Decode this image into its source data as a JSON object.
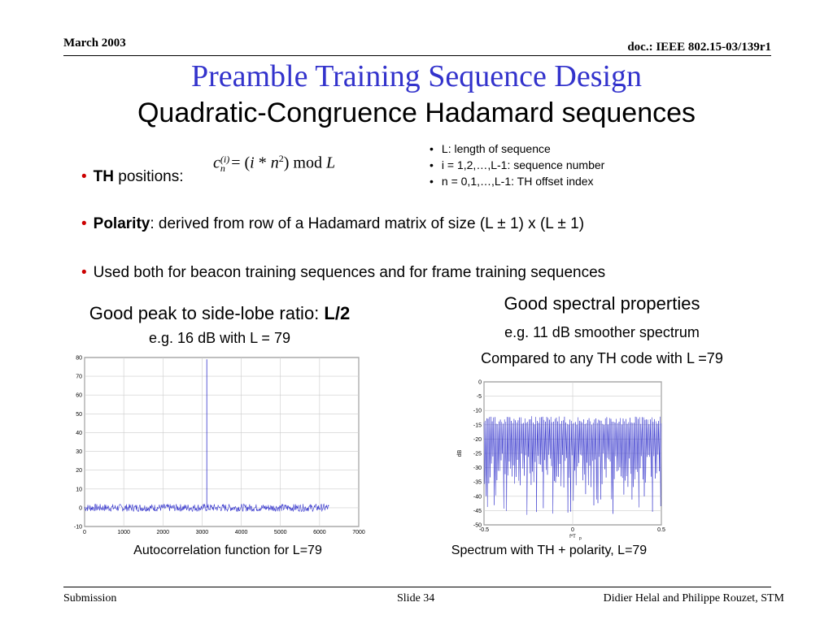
{
  "header": {
    "date": "March 2003",
    "doc": "doc.: IEEE 802.15-03/139r1"
  },
  "title": "Preamble Training Sequence Design",
  "subtitle": "Quadratic-Congruence Hadamard sequences",
  "bullets": {
    "th_bold": "TH",
    "th_rest": " positions:",
    "polarity_bold": "Polarity",
    "polarity_rest": ": derived from row of a Hadamard matrix of size (L ± 1) x (L ± 1)",
    "used": "Used both for beacon training sequences and for frame training sequences"
  },
  "formula": {
    "c": "c",
    "sup": "(i)",
    "sub": "n",
    "eq": "= (",
    "i": "i",
    "star": " * ",
    "n": "n",
    "exp": "2",
    "close": ")",
    "mod": " mod ",
    "L": "L"
  },
  "side_notes": [
    "L: length of sequence",
    "i = 1,2,…,L-1: sequence number",
    "n = 0,1,…,L-1: TH offset index"
  ],
  "left_figure": {
    "heading": "Good peak to side-lobe ratio: ",
    "heading_bold": "L/2",
    "sub": "e.g. 16 dB with L = 79",
    "caption": "Autocorrelation function for L=79"
  },
  "right_figure": {
    "heading": "Good spectral properties",
    "sub1": "e.g. 11 dB smoother spectrum",
    "sub2": "Compared to any TH code with L =79",
    "caption": "Spectrum with TH + polarity, L=79"
  },
  "chart_data": [
    {
      "type": "line",
      "title": "",
      "xlabel": "",
      "ylabel": "",
      "xlim": [
        0,
        7000
      ],
      "ylim": [
        -10,
        80
      ],
      "x_ticks": [
        "0",
        "1000",
        "2000",
        "3000",
        "4000",
        "5000",
        "6000",
        "7000"
      ],
      "y_ticks": [
        "-10",
        "0",
        "10",
        "20",
        "30",
        "40",
        "50",
        "60",
        "70",
        "80"
      ],
      "series": [
        {
          "x_range": [
            0,
            6240
          ],
          "baseline": 0,
          "noise_amplitude": 2,
          "peak_x": 3120,
          "peak_y": 79
        }
      ],
      "grid": true,
      "color": "#3333cc"
    },
    {
      "type": "line",
      "title": "",
      "xlabel": "f*T",
      "xlabel_sub": "p",
      "ylabel": "dB",
      "xlim": [
        -0.5,
        0.5
      ],
      "ylim": [
        -50,
        0
      ],
      "x_ticks": [
        "-0.5",
        "0",
        "0.5"
      ],
      "y_ticks": [
        "0",
        "-5",
        "-10",
        "-15",
        "-20",
        "-25",
        "-30",
        "-35",
        "-40",
        "-45",
        "-50"
      ],
      "series": [
        {
          "upper": -12,
          "lower_min": -47,
          "lower_typ": -25
        }
      ],
      "grid": true,
      "color": "#3333cc"
    }
  ],
  "footer": {
    "left": "Submission",
    "center": "Slide 34",
    "right": "Didier Helal and Philippe Rouzet, STM"
  }
}
